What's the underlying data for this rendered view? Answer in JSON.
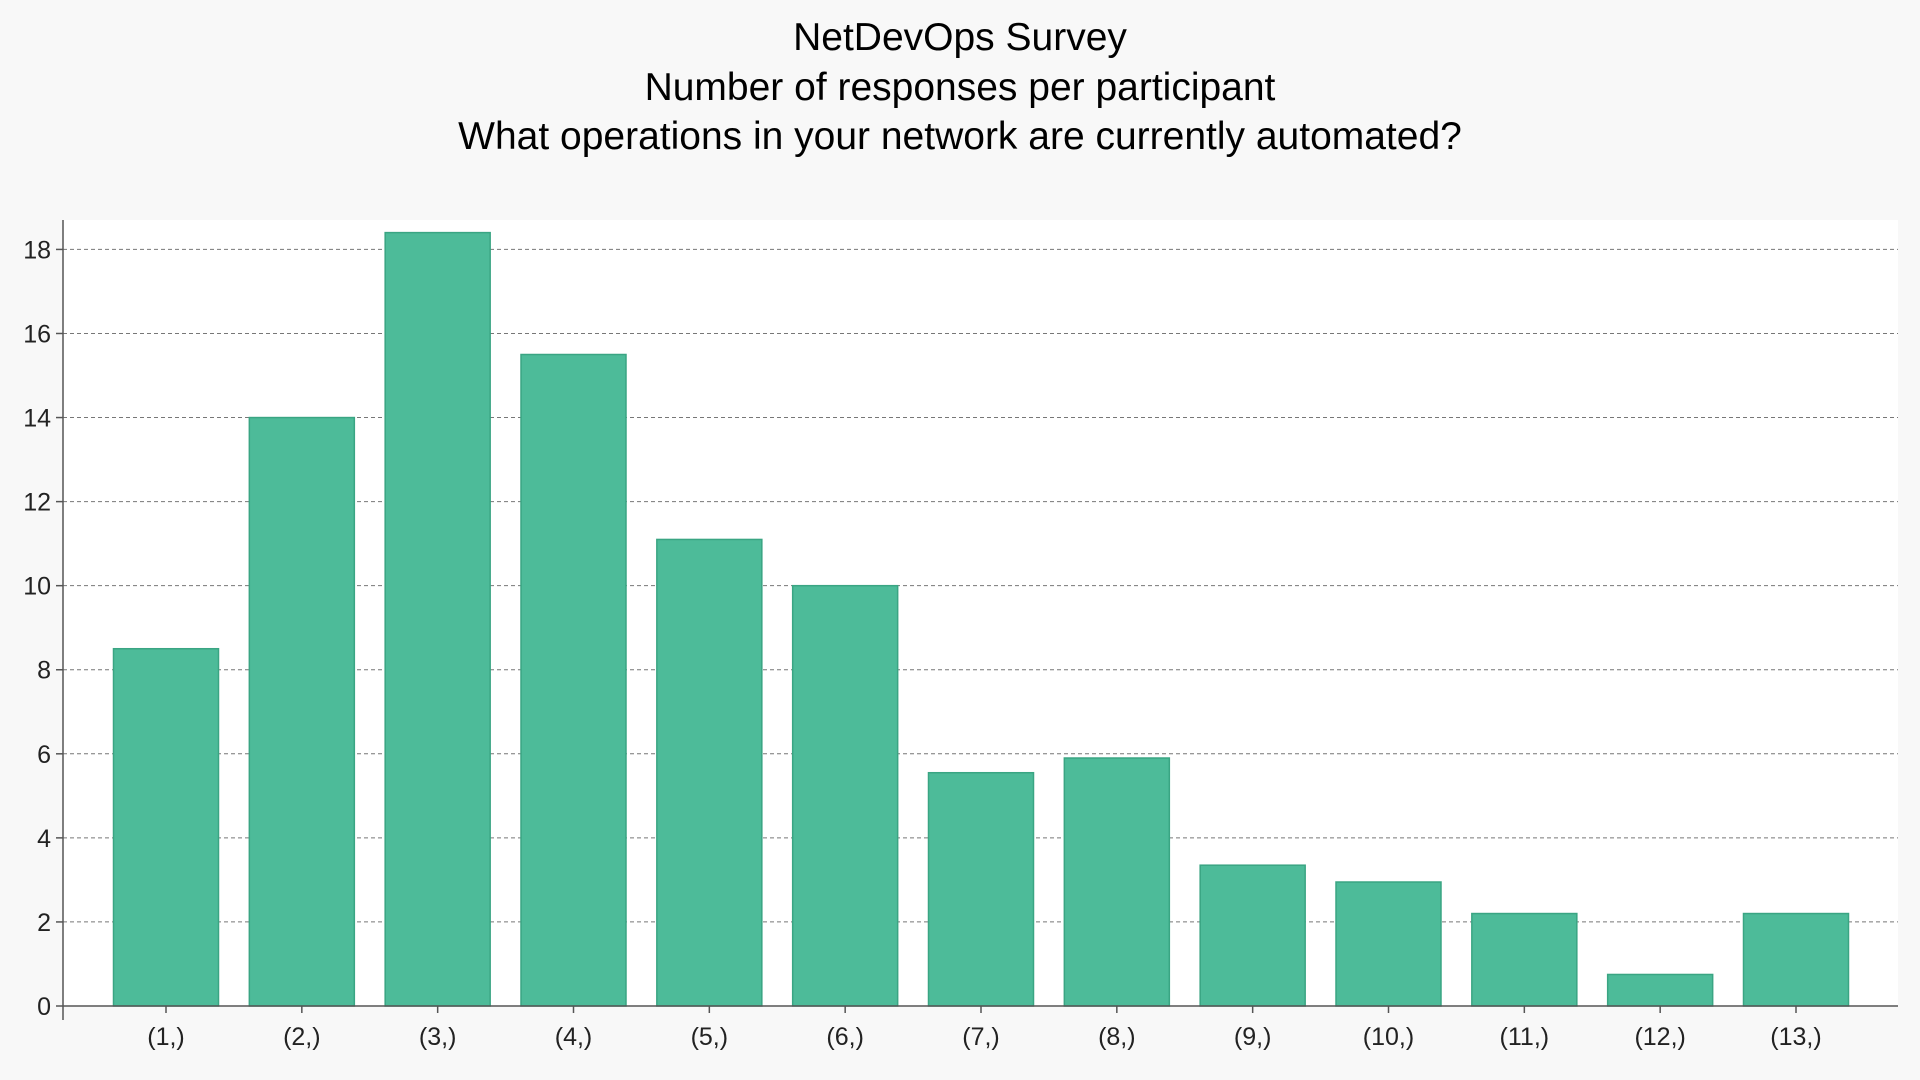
{
  "colors": {
    "bar": "#4dbb99",
    "bar_edge": "#3aa583",
    "plot_bg": "#ffffff",
    "page_bg": "#f8f8f8",
    "grid": "#777777",
    "axis": "#555555"
  },
  "chart_data": {
    "type": "bar",
    "title": [
      "NetDevOps Survey",
      "Number of responses per participant",
      "What operations in your network are currently automated?"
    ],
    "xlabel": "",
    "ylabel": "",
    "categories": [
      "(1,)",
      "(2,)",
      "(3,)",
      "(4,)",
      "(5,)",
      "(6,)",
      "(7,)",
      "(8,)",
      "(9,)",
      "(10,)",
      "(11,)",
      "(12,)",
      "(13,)"
    ],
    "values": [
      8.5,
      14.0,
      18.4,
      15.5,
      11.1,
      10.0,
      5.55,
      5.9,
      3.35,
      2.95,
      2.2,
      0.75,
      2.2
    ],
    "ylim": [
      0,
      18.7
    ],
    "yticks": [
      "0",
      "2",
      "4",
      "6",
      "8",
      "10",
      "12",
      "14",
      "16",
      "18"
    ],
    "grid": "y-dashed",
    "legend": "none"
  }
}
